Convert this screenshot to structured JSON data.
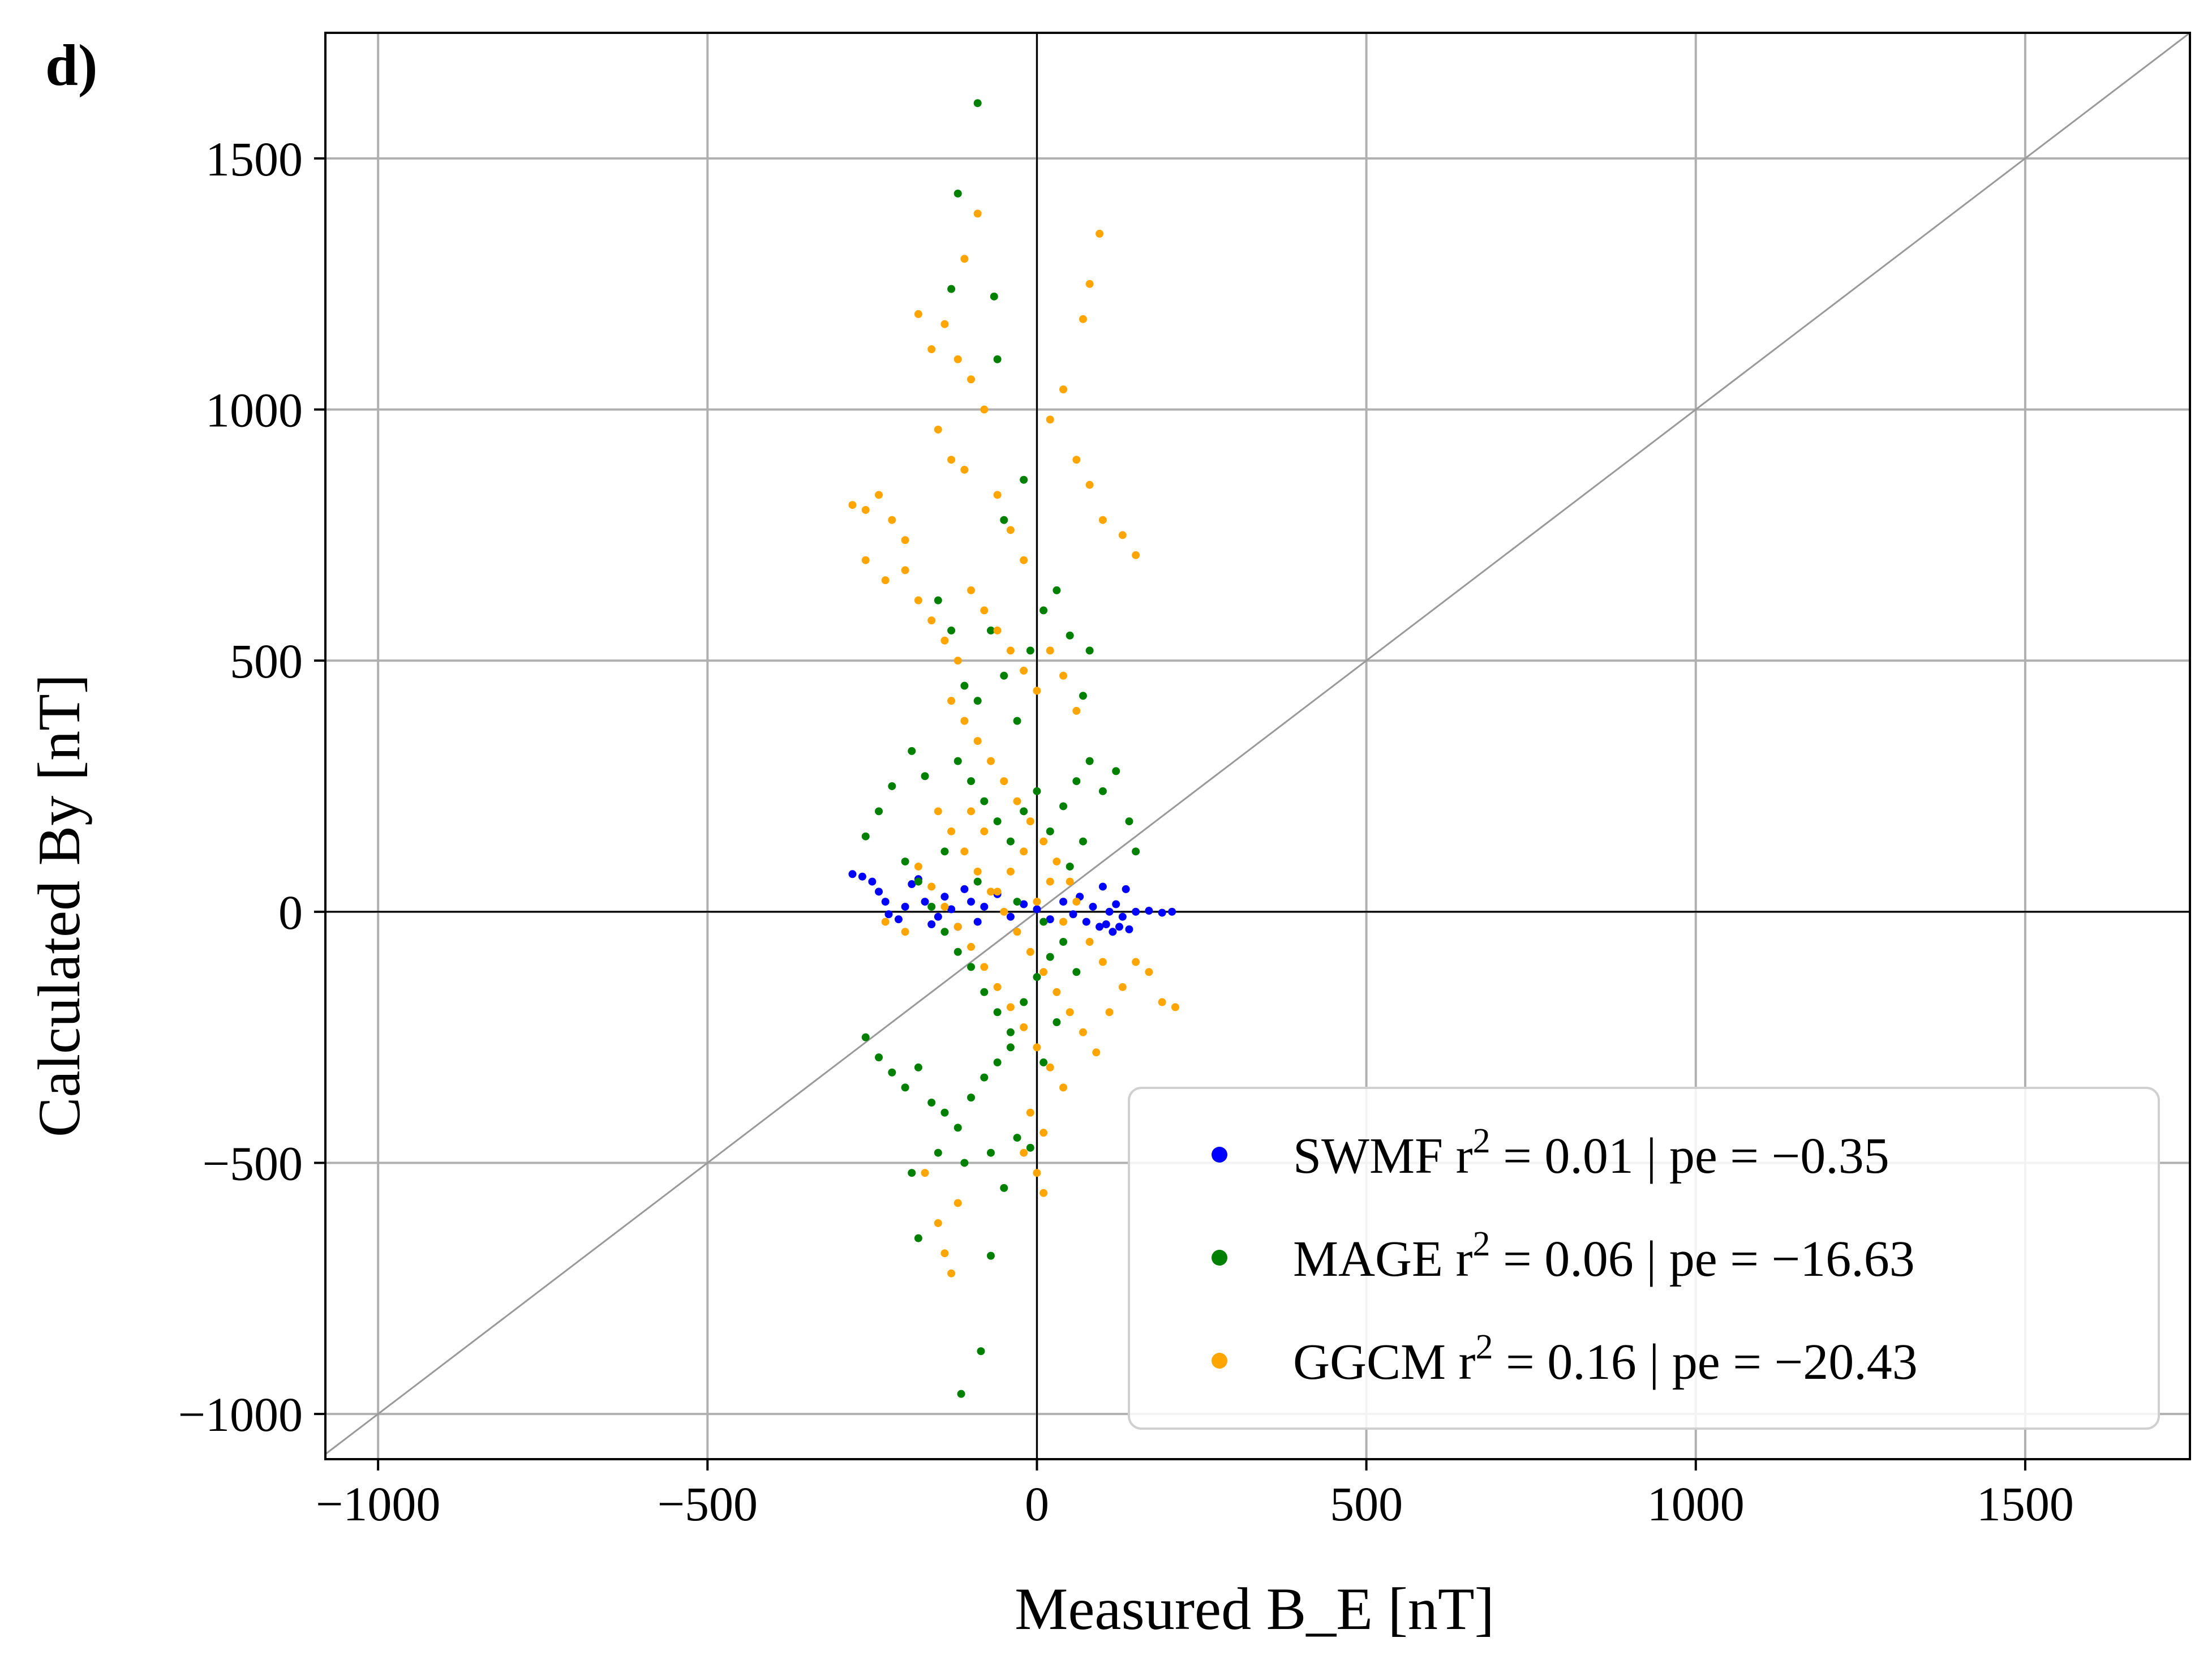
{
  "panel_label": "d)",
  "chart_data": {
    "type": "scatter",
    "title": "",
    "xlabel": "Measured B_E [nT]",
    "ylabel": "Calculated By [nT]",
    "xlim": [
      -1080,
      1750
    ],
    "ylim": [
      -1090,
      1750
    ],
    "xticks": [
      -1000,
      -500,
      0,
      500,
      1000,
      1500
    ],
    "yticks": [
      -1000,
      -500,
      0,
      500,
      1000,
      1500
    ],
    "xtick_labels": [
      "−1000",
      "−500",
      "0",
      "500",
      "1000",
      "1500"
    ],
    "ytick_labels": [
      "−1000",
      "−500",
      "0",
      "500",
      "1000",
      "1500"
    ],
    "grid": true,
    "reference_lines": [
      "x=0",
      "y=0",
      "y=x"
    ],
    "legend": {
      "location": "lower-right",
      "entries": [
        {
          "model": "SWMF",
          "r2": "0.01",
          "pe": "−0.35",
          "color": "#0000ff"
        },
        {
          "model": "MAGE",
          "r2": "0.06",
          "pe": "−16.63",
          "color": "#008000"
        },
        {
          "model": "GGCM",
          "r2": "0.16",
          "pe": "−20.43",
          "color": "#ffa500"
        }
      ]
    },
    "series": [
      {
        "name": "SWMF",
        "color": "#0000ff",
        "points": [
          [
            -280,
            75
          ],
          [
            -265,
            70
          ],
          [
            -250,
            60
          ],
          [
            -240,
            40
          ],
          [
            -230,
            20
          ],
          [
            -225,
            -5
          ],
          [
            -210,
            -15
          ],
          [
            -200,
            10
          ],
          [
            -190,
            55
          ],
          [
            -180,
            65
          ],
          [
            -170,
            20
          ],
          [
            -160,
            -25
          ],
          [
            -150,
            -10
          ],
          [
            -140,
            30
          ],
          [
            -130,
            5
          ],
          [
            -120,
            -30
          ],
          [
            -110,
            45
          ],
          [
            -100,
            20
          ],
          [
            -90,
            -20
          ],
          [
            -80,
            10
          ],
          [
            -60,
            35
          ],
          [
            -40,
            -10
          ],
          [
            -20,
            15
          ],
          [
            0,
            5
          ],
          [
            20,
            -15
          ],
          [
            40,
            20
          ],
          [
            55,
            -5
          ],
          [
            65,
            30
          ],
          [
            75,
            -20
          ],
          [
            85,
            10
          ],
          [
            95,
            -30
          ],
          [
            100,
            50
          ],
          [
            105,
            -25
          ],
          [
            110,
            0
          ],
          [
            115,
            -40
          ],
          [
            120,
            15
          ],
          [
            125,
            -30
          ],
          [
            130,
            -10
          ],
          [
            135,
            45
          ],
          [
            140,
            -35
          ],
          [
            150,
            0
          ],
          [
            170,
            2
          ],
          [
            190,
            -2
          ],
          [
            205,
            0
          ]
        ]
      },
      {
        "name": "MAGE",
        "color": "#008000",
        "points": [
          [
            -90,
            1610
          ],
          [
            -120,
            1430
          ],
          [
            -130,
            1240
          ],
          [
            -65,
            1225
          ],
          [
            -60,
            1100
          ],
          [
            -20,
            860
          ],
          [
            -50,
            780
          ],
          [
            -150,
            620
          ],
          [
            -130,
            560
          ],
          [
            -110,
            450
          ],
          [
            -90,
            420
          ],
          [
            -70,
            560
          ],
          [
            -50,
            470
          ],
          [
            -30,
            380
          ],
          [
            -10,
            520
          ],
          [
            10,
            600
          ],
          [
            30,
            640
          ],
          [
            50,
            550
          ],
          [
            70,
            430
          ],
          [
            80,
            520
          ],
          [
            -190,
            320
          ],
          [
            -170,
            270
          ],
          [
            -220,
            250
          ],
          [
            -240,
            200
          ],
          [
            -260,
            150
          ],
          [
            -120,
            300
          ],
          [
            -100,
            260
          ],
          [
            -80,
            220
          ],
          [
            -60,
            180
          ],
          [
            -40,
            140
          ],
          [
            -20,
            200
          ],
          [
            0,
            240
          ],
          [
            20,
            160
          ],
          [
            40,
            210
          ],
          [
            60,
            260
          ],
          [
            80,
            300
          ],
          [
            100,
            240
          ],
          [
            120,
            280
          ],
          [
            140,
            180
          ],
          [
            150,
            120
          ],
          [
            -200,
            100
          ],
          [
            -180,
            60
          ],
          [
            -160,
            10
          ],
          [
            -140,
            -40
          ],
          [
            -120,
            -80
          ],
          [
            -100,
            -110
          ],
          [
            -80,
            -160
          ],
          [
            -60,
            -200
          ],
          [
            -40,
            -240
          ],
          [
            -20,
            -180
          ],
          [
            0,
            -130
          ],
          [
            20,
            -90
          ],
          [
            40,
            -60
          ],
          [
            60,
            -120
          ],
          [
            -260,
            -250
          ],
          [
            -240,
            -290
          ],
          [
            -220,
            -320
          ],
          [
            -200,
            -350
          ],
          [
            -180,
            -310
          ],
          [
            -160,
            -380
          ],
          [
            -140,
            -400
          ],
          [
            -120,
            -430
          ],
          [
            -100,
            -370
          ],
          [
            -80,
            -330
          ],
          [
            -60,
            -300
          ],
          [
            -40,
            -270
          ],
          [
            -30,
            -450
          ],
          [
            -70,
            -480
          ],
          [
            -110,
            -500
          ],
          [
            -150,
            -480
          ],
          [
            -190,
            -520
          ],
          [
            -50,
            -550
          ],
          [
            -10,
            -470
          ],
          [
            -180,
            -650
          ],
          [
            -70,
            -685
          ],
          [
            -85,
            -875
          ],
          [
            -115,
            -960
          ],
          [
            10,
            -300
          ],
          [
            30,
            -220
          ],
          [
            50,
            90
          ],
          [
            70,
            140
          ],
          [
            -140,
            120
          ],
          [
            -90,
            60
          ],
          [
            -30,
            20
          ],
          [
            10,
            -20
          ]
        ]
      },
      {
        "name": "GGCM",
        "color": "#ffa500",
        "points": [
          [
            -90,
            1390
          ],
          [
            -110,
            1300
          ],
          [
            95,
            1350
          ],
          [
            80,
            1250
          ],
          [
            70,
            1180
          ],
          [
            -180,
            1190
          ],
          [
            -160,
            1120
          ],
          [
            -140,
            1170
          ],
          [
            -120,
            1100
          ],
          [
            -100,
            1060
          ],
          [
            -80,
            1000
          ],
          [
            -150,
            960
          ],
          [
            -130,
            900
          ],
          [
            -110,
            880
          ],
          [
            -60,
            830
          ],
          [
            -40,
            760
          ],
          [
            -20,
            700
          ],
          [
            20,
            980
          ],
          [
            40,
            1040
          ],
          [
            60,
            900
          ],
          [
            80,
            850
          ],
          [
            100,
            780
          ],
          [
            130,
            750
          ],
          [
            150,
            710
          ],
          [
            -280,
            810
          ],
          [
            -260,
            800
          ],
          [
            -240,
            830
          ],
          [
            -220,
            780
          ],
          [
            -200,
            740
          ],
          [
            -260,
            700
          ],
          [
            -230,
            660
          ],
          [
            -200,
            680
          ],
          [
            -180,
            620
          ],
          [
            -160,
            580
          ],
          [
            -140,
            540
          ],
          [
            -120,
            500
          ],
          [
            -100,
            640
          ],
          [
            -80,
            600
          ],
          [
            -60,
            560
          ],
          [
            -40,
            520
          ],
          [
            -20,
            480
          ],
          [
            0,
            440
          ],
          [
            20,
            520
          ],
          [
            40,
            470
          ],
          [
            60,
            400
          ],
          [
            -130,
            420
          ],
          [
            -110,
            380
          ],
          [
            -90,
            340
          ],
          [
            -70,
            300
          ],
          [
            -50,
            260
          ],
          [
            -30,
            220
          ],
          [
            -10,
            180
          ],
          [
            10,
            140
          ],
          [
            30,
            100
          ],
          [
            50,
            60
          ],
          [
            -150,
            200
          ],
          [
            -130,
            160
          ],
          [
            -110,
            120
          ],
          [
            -90,
            80
          ],
          [
            -70,
            40
          ],
          [
            -50,
            0
          ],
          [
            -30,
            -40
          ],
          [
            -10,
            -80
          ],
          [
            10,
            -120
          ],
          [
            30,
            -160
          ],
          [
            50,
            -200
          ],
          [
            70,
            -240
          ],
          [
            90,
            -280
          ],
          [
            110,
            -200
          ],
          [
            130,
            -150
          ],
          [
            150,
            -100
          ],
          [
            170,
            -120
          ],
          [
            190,
            -180
          ],
          [
            210,
            -190
          ],
          [
            -230,
            -20
          ],
          [
            -200,
            -40
          ],
          [
            -180,
            90
          ],
          [
            -160,
            50
          ],
          [
            -140,
            10
          ],
          [
            -120,
            -30
          ],
          [
            -100,
            -70
          ],
          [
            -80,
            -110
          ],
          [
            -60,
            -150
          ],
          [
            -40,
            -190
          ],
          [
            -20,
            -230
          ],
          [
            0,
            -270
          ],
          [
            20,
            -310
          ],
          [
            40,
            -350
          ],
          [
            -10,
            -400
          ],
          [
            10,
            -440
          ],
          [
            -20,
            -480
          ],
          [
            0,
            -520
          ],
          [
            10,
            -560
          ],
          [
            -130,
            -720
          ],
          [
            -140,
            -680
          ],
          [
            -150,
            -620
          ],
          [
            -120,
            -580
          ],
          [
            -170,
            -520
          ],
          [
            -60,
            40
          ],
          [
            -40,
            80
          ],
          [
            -20,
            120
          ],
          [
            0,
            20
          ],
          [
            20,
            60
          ],
          [
            40,
            -20
          ],
          [
            60,
            20
          ],
          [
            80,
            -60
          ],
          [
            -80,
            160
          ],
          [
            -100,
            200
          ],
          [
            100,
            -100
          ]
        ]
      }
    ]
  }
}
